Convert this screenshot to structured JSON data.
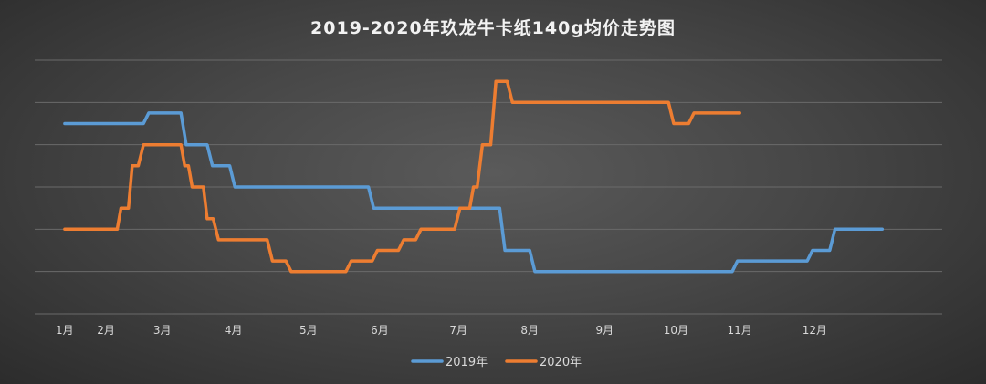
{
  "chart_data": {
    "type": "line",
    "title": "2019-2020年玖龙牛卡纸140g均价走势图",
    "xlabel": "",
    "ylabel": "",
    "x_tick_labels": [
      "1月",
      "2月",
      "3月",
      "4月",
      "5月",
      "6月",
      "7月",
      "8月",
      "9月",
      "10月",
      "11月",
      "12月"
    ],
    "x_tick_positions": [
      1.0,
      1.55,
      2.3,
      3.25,
      4.25,
      5.2,
      6.25,
      7.2,
      8.2,
      9.15,
      10.0,
      11.0
    ],
    "xlim": [
      0.6,
      12.7
    ],
    "ylim": [
      0,
      12
    ],
    "grid": true,
    "legend_position": "bottom",
    "series": [
      {
        "name": "2019年",
        "color": "#5b9bd5",
        "points": [
          [
            1.0,
            9.0
          ],
          [
            2.05,
            9.0
          ],
          [
            2.12,
            9.5
          ],
          [
            2.55,
            9.5
          ],
          [
            2.62,
            8.0
          ],
          [
            2.9,
            8.0
          ],
          [
            2.97,
            7.0
          ],
          [
            3.2,
            7.0
          ],
          [
            3.27,
            6.0
          ],
          [
            5.05,
            6.0
          ],
          [
            5.12,
            5.0
          ],
          [
            6.8,
            5.0
          ],
          [
            6.87,
            3.0
          ],
          [
            7.2,
            3.0
          ],
          [
            7.27,
            2.0
          ],
          [
            9.9,
            2.0
          ],
          [
            9.97,
            2.5
          ],
          [
            10.9,
            2.5
          ],
          [
            10.97,
            3.0
          ],
          [
            11.2,
            3.0
          ],
          [
            11.27,
            4.0
          ],
          [
            11.9,
            4.0
          ]
        ]
      },
      {
        "name": "2020年",
        "color": "#ed7d31",
        "points": [
          [
            1.0,
            4.0
          ],
          [
            1.7,
            4.0
          ],
          [
            1.75,
            5.0
          ],
          [
            1.85,
            5.0
          ],
          [
            1.9,
            7.0
          ],
          [
            1.98,
            7.0
          ],
          [
            2.05,
            8.0
          ],
          [
            2.55,
            8.0
          ],
          [
            2.6,
            7.0
          ],
          [
            2.65,
            7.0
          ],
          [
            2.7,
            6.0
          ],
          [
            2.85,
            6.0
          ],
          [
            2.9,
            4.5
          ],
          [
            2.98,
            4.5
          ],
          [
            3.05,
            3.5
          ],
          [
            3.7,
            3.5
          ],
          [
            3.77,
            2.5
          ],
          [
            3.95,
            2.5
          ],
          [
            4.02,
            2.0
          ],
          [
            4.75,
            2.0
          ],
          [
            4.82,
            2.5
          ],
          [
            5.1,
            2.5
          ],
          [
            5.17,
            3.0
          ],
          [
            5.45,
            3.0
          ],
          [
            5.52,
            3.5
          ],
          [
            5.68,
            3.5
          ],
          [
            5.75,
            4.0
          ],
          [
            6.2,
            4.0
          ],
          [
            6.27,
            5.0
          ],
          [
            6.4,
            5.0
          ],
          [
            6.45,
            6.0
          ],
          [
            6.5,
            6.0
          ],
          [
            6.57,
            8.0
          ],
          [
            6.68,
            8.0
          ],
          [
            6.75,
            11.0
          ],
          [
            6.9,
            11.0
          ],
          [
            6.97,
            10.0
          ],
          [
            9.05,
            10.0
          ],
          [
            9.12,
            9.0
          ],
          [
            9.32,
            9.0
          ],
          [
            9.39,
            9.5
          ],
          [
            10.0,
            9.5
          ]
        ]
      }
    ]
  }
}
